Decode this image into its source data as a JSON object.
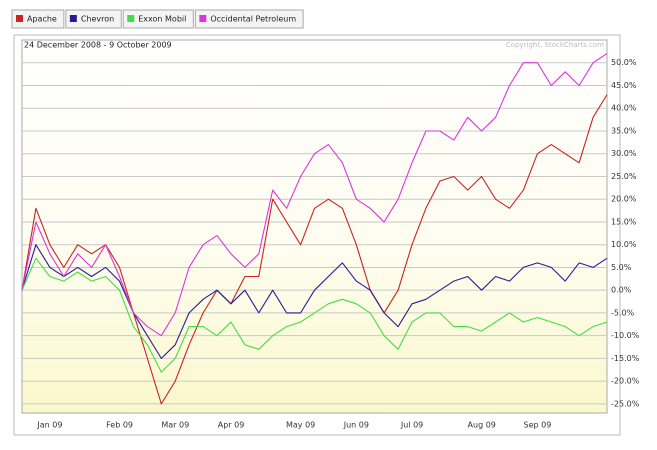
{
  "chart_data": {
    "type": "line",
    "subtitle": "24 December 2008 - 9 October 2009",
    "annotation": "Copyright, StockCharts.com",
    "categories": [
      null,
      "Jan 09",
      null,
      null,
      null,
      null,
      "Feb 09",
      null,
      null,
      null,
      "Mar 09",
      null,
      null,
      null,
      "Apr 09",
      null,
      null,
      null,
      null,
      "May 09",
      null,
      null,
      null,
      "Jun 09",
      null,
      null,
      null,
      "Jul 09",
      null,
      null,
      null,
      null,
      "Aug 09",
      null,
      null,
      null,
      "Sep 09",
      null,
      null,
      null,
      null,
      null,
      null
    ],
    "series": [
      {
        "name": "Apache",
        "color": "#cc2222",
        "values": [
          0,
          18,
          10,
          5,
          10,
          8,
          10,
          5,
          -5,
          -15,
          -25,
          -20,
          -12,
          -5,
          0,
          -3,
          3,
          3,
          20,
          15,
          10,
          18,
          20,
          18,
          10,
          0,
          -5,
          0,
          10,
          18,
          24,
          25,
          22,
          25,
          20,
          18,
          22,
          30,
          32,
          30,
          28,
          38,
          43
        ]
      },
      {
        "name": "Chevron",
        "color": "#2a1a9a",
        "values": [
          0,
          10,
          5,
          3,
          5,
          3,
          5,
          2,
          -5,
          -10,
          -15,
          -12,
          -5,
          -2,
          0,
          -3,
          0,
          -5,
          0,
          -5,
          -5,
          0,
          3,
          6,
          2,
          0,
          -5,
          -8,
          -3,
          -2,
          0,
          2,
          3,
          0,
          3,
          2,
          5,
          6,
          5,
          2,
          6,
          5,
          7
        ]
      },
      {
        "name": "Exxon Mobil",
        "color": "#44dd44",
        "values": [
          0,
          7,
          3,
          2,
          4,
          2,
          3,
          0,
          -8,
          -12,
          -18,
          -15,
          -8,
          -8,
          -10,
          -7,
          -12,
          -13,
          -10,
          -8,
          -7,
          -5,
          -3,
          -2,
          -3,
          -5,
          -10,
          -13,
          -7,
          -5,
          -5,
          -8,
          -8,
          -9,
          -7,
          -5,
          -7,
          -6,
          -7,
          -8,
          -10,
          -8,
          -7
        ]
      },
      {
        "name": "Occidental Petroleum",
        "color": "#dd33dd",
        "values": [
          0,
          15,
          8,
          3,
          8,
          5,
          10,
          3,
          -5,
          -8,
          -10,
          -5,
          5,
          10,
          12,
          8,
          5,
          8,
          22,
          18,
          25,
          30,
          32,
          28,
          20,
          18,
          15,
          20,
          28,
          35,
          35,
          33,
          38,
          35,
          38,
          45,
          50,
          50,
          45,
          48,
          45,
          50,
          52
        ]
      }
    ],
    "ylim": [
      -27,
      55
    ],
    "yticks": [
      {
        "value": -25,
        "label": "-25.0%"
      },
      {
        "value": -20,
        "label": "-20.0%"
      },
      {
        "value": -15,
        "label": "-15.0%"
      },
      {
        "value": -10,
        "label": "-10.0%"
      },
      {
        "value": -5,
        "label": "-5.0%"
      },
      {
        "value": 0,
        "label": "0.0%"
      },
      {
        "value": 5,
        "label": "5.0%"
      },
      {
        "value": 10,
        "label": "10.0%"
      },
      {
        "value": 15,
        "label": "15.0%"
      },
      {
        "value": 20,
        "label": "20.0%"
      },
      {
        "value": 25,
        "label": "25.0%"
      },
      {
        "value": 30,
        "label": "30.0%"
      },
      {
        "value": 35,
        "label": "35.0%"
      },
      {
        "value": 40,
        "label": "40.0%"
      },
      {
        "value": 45,
        "label": "45.0%"
      },
      {
        "value": 50,
        "label": "50.0%"
      }
    ],
    "grid": true
  }
}
